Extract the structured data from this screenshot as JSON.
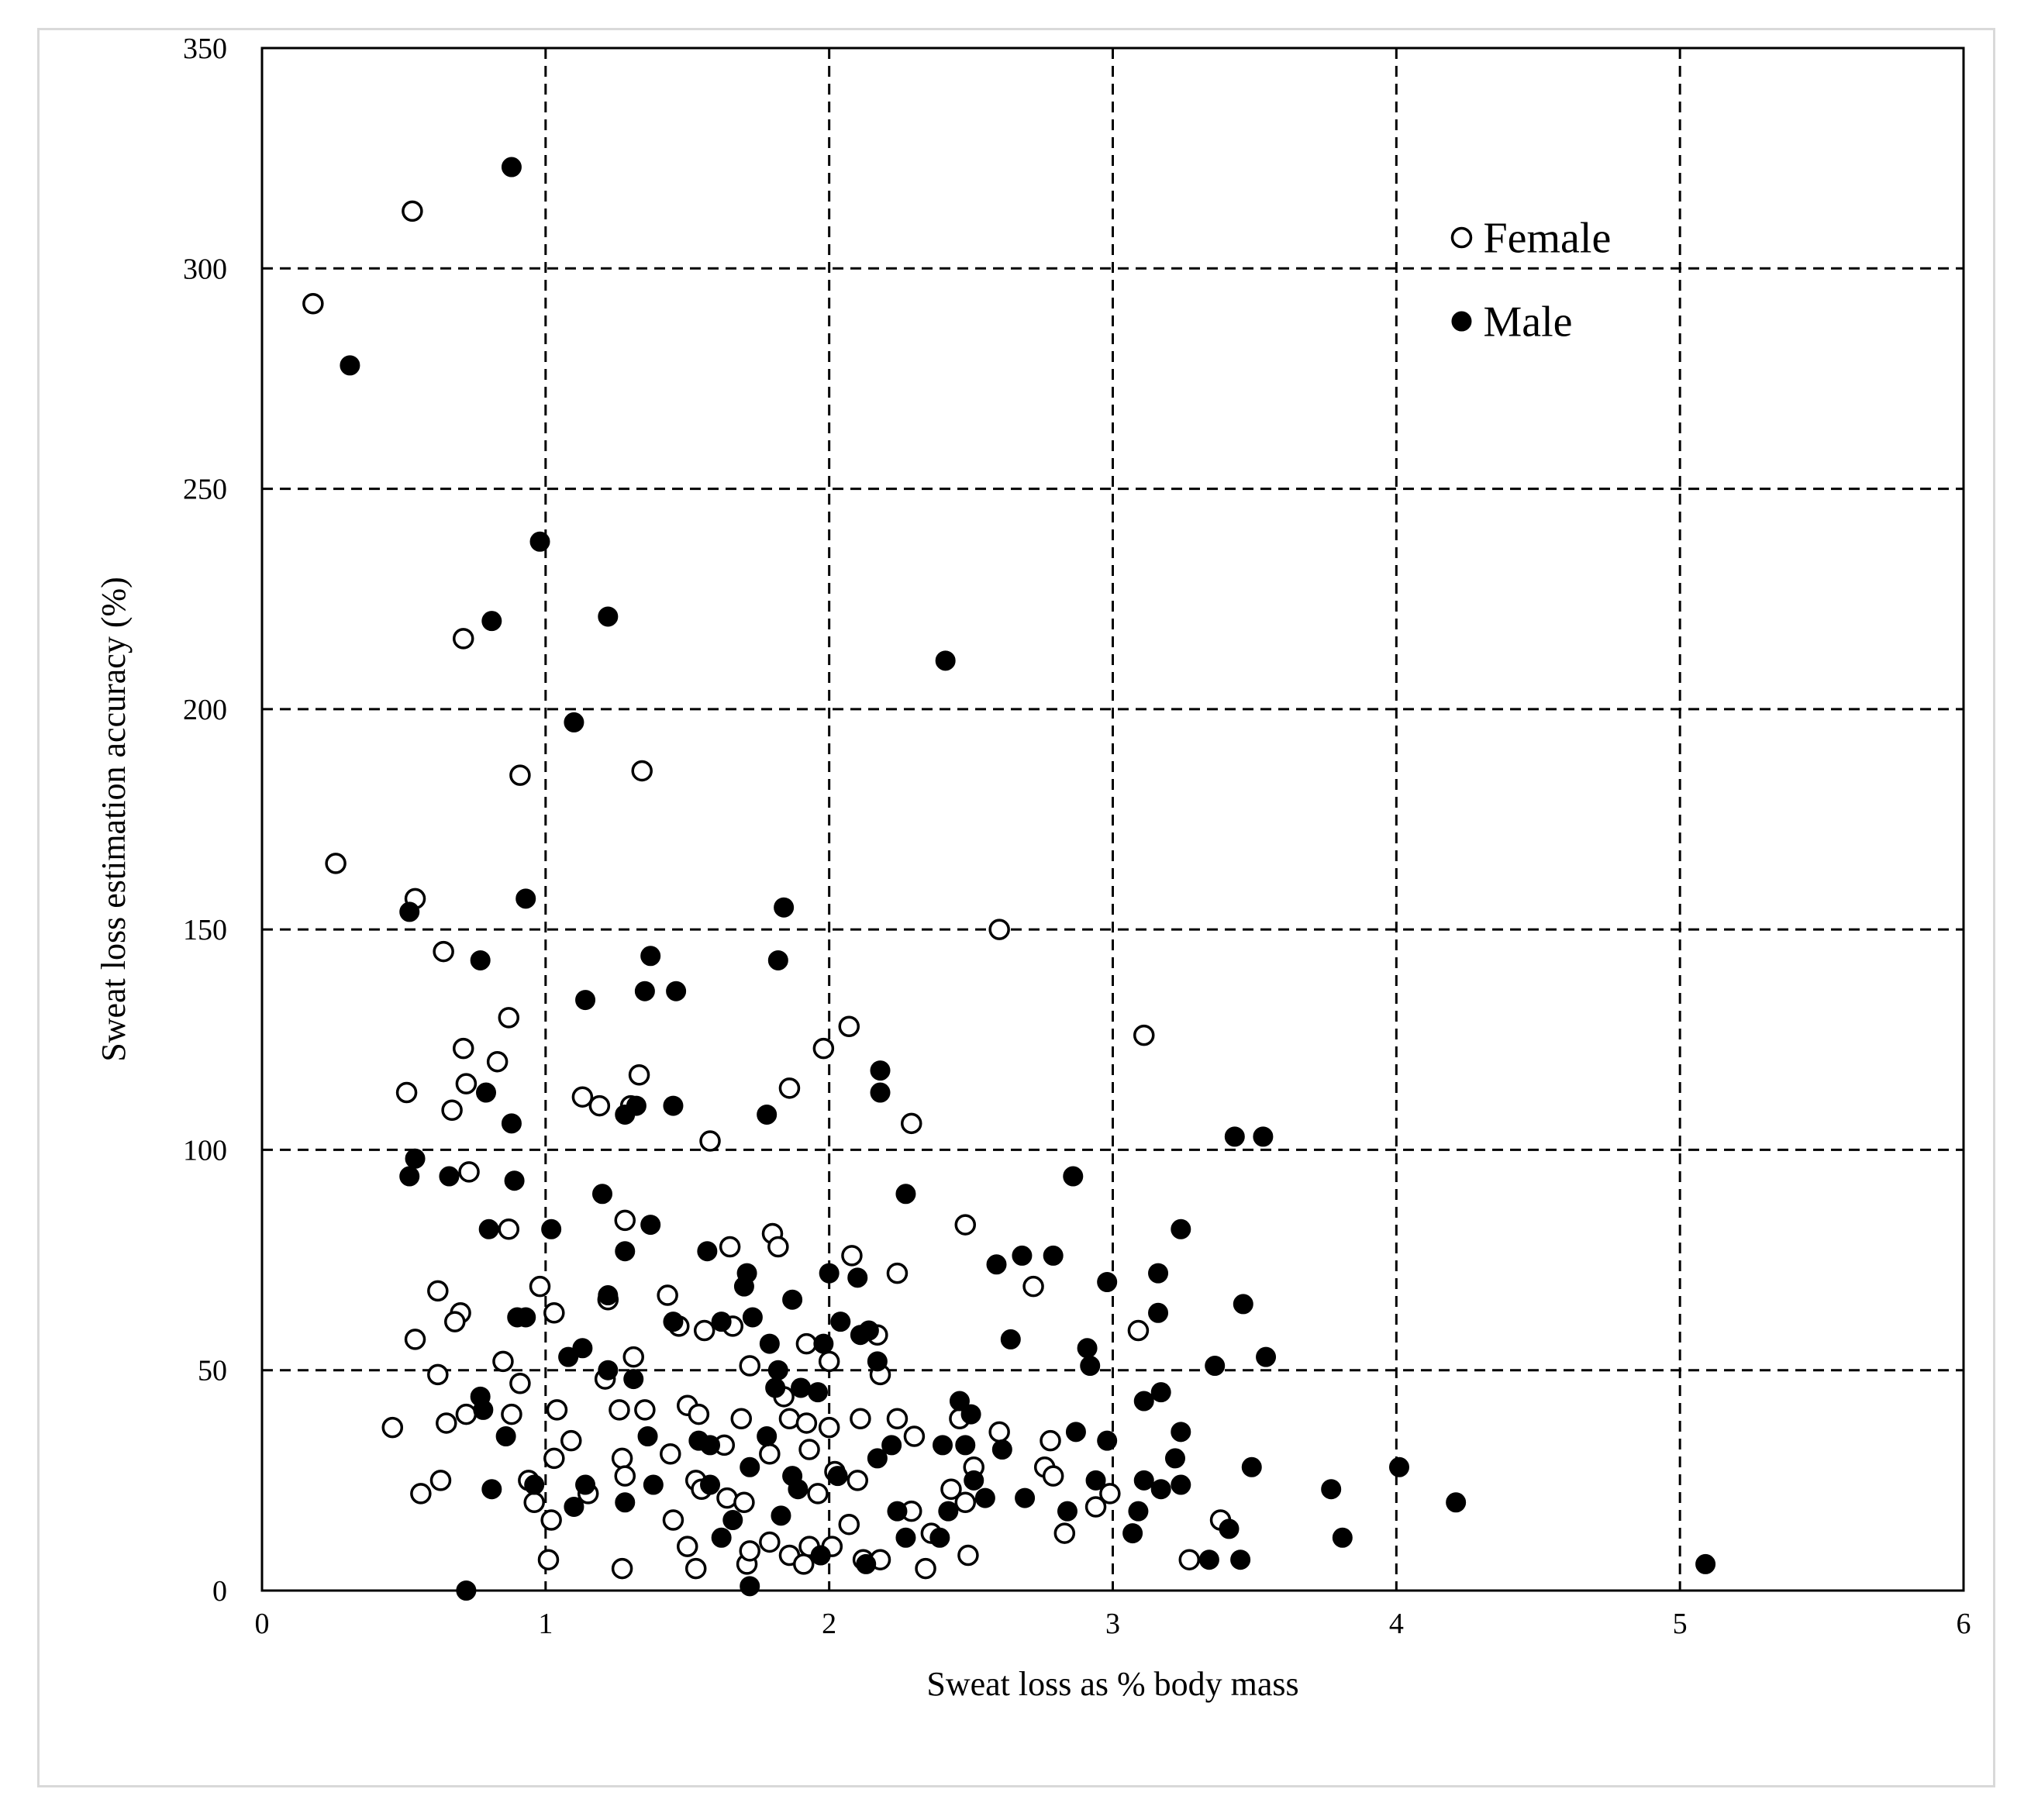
{
  "chart_data": {
    "type": "scatter",
    "xlabel": "Sweat loss as % body mass",
    "ylabel": "Sweat loss estimation accuracy (%)",
    "xlim": [
      0,
      6
    ],
    "ylim": [
      0,
      350
    ],
    "xticks": [
      0,
      1,
      2,
      3,
      4,
      5,
      6
    ],
    "yticks": [
      0,
      50,
      100,
      150,
      200,
      250,
      300,
      350
    ],
    "grid": "dashed",
    "legend_position": "top-right",
    "series": [
      {
        "name": "Female",
        "marker": "open-circle",
        "points": [
          [
            0.18,
            292
          ],
          [
            0.53,
            313
          ],
          [
            0.26,
            165
          ],
          [
            0.54,
            157
          ],
          [
            0.64,
            145
          ],
          [
            0.71,
            216
          ],
          [
            0.91,
            185
          ],
          [
            1.34,
            186
          ],
          [
            2.6,
            150
          ],
          [
            0.51,
            113
          ],
          [
            0.71,
            123
          ],
          [
            0.72,
            115
          ],
          [
            0.67,
            109
          ],
          [
            0.83,
            120
          ],
          [
            0.87,
            130
          ],
          [
            1.13,
            112
          ],
          [
            1.19,
            110
          ],
          [
            1.33,
            117
          ],
          [
            1.3,
            110
          ],
          [
            1.58,
            102
          ],
          [
            1.86,
            114
          ],
          [
            1.98,
            123
          ],
          [
            2.07,
            128
          ],
          [
            2.29,
            106
          ],
          [
            3.11,
            126
          ],
          [
            0.73,
            95
          ],
          [
            0.87,
            82
          ],
          [
            1.28,
            84
          ],
          [
            1.8,
            81
          ],
          [
            1.82,
            78
          ],
          [
            1.65,
            78
          ],
          [
            2.08,
            76
          ],
          [
            2.24,
            72
          ],
          [
            2.48,
            83
          ],
          [
            2.72,
            69
          ],
          [
            3.09,
            59
          ],
          [
            0.62,
            68
          ],
          [
            0.7,
            63
          ],
          [
            0.68,
            61
          ],
          [
            0.54,
            57
          ],
          [
            0.62,
            49
          ],
          [
            0.85,
            52
          ],
          [
            0.91,
            47
          ],
          [
            0.98,
            69
          ],
          [
            1.03,
            63
          ],
          [
            1.21,
            48
          ],
          [
            1.22,
            66
          ],
          [
            1.31,
            53
          ],
          [
            1.43,
            67
          ],
          [
            1.47,
            60
          ],
          [
            1.56,
            59
          ],
          [
            1.66,
            60
          ],
          [
            1.72,
            51
          ],
          [
            1.92,
            56
          ],
          [
            2.0,
            52
          ],
          [
            2.17,
            58
          ],
          [
            2.18,
            49
          ],
          [
            0.46,
            37
          ],
          [
            0.65,
            38
          ],
          [
            0.72,
            40
          ],
          [
            0.88,
            40
          ],
          [
            1.04,
            41
          ],
          [
            1.26,
            41
          ],
          [
            1.35,
            41
          ],
          [
            1.5,
            42
          ],
          [
            1.54,
            40
          ],
          [
            1.69,
            39
          ],
          [
            1.84,
            44
          ],
          [
            1.86,
            39
          ],
          [
            1.92,
            38
          ],
          [
            2.0,
            37
          ],
          [
            2.11,
            39
          ],
          [
            2.24,
            39
          ],
          [
            2.46,
            39
          ],
          [
            0.63,
            25
          ],
          [
            0.56,
            22
          ],
          [
            0.94,
            25
          ],
          [
            0.96,
            20
          ],
          [
            1.03,
            30
          ],
          [
            1.09,
            34
          ],
          [
            1.15,
            22
          ],
          [
            1.27,
            30
          ],
          [
            1.28,
            26
          ],
          [
            1.44,
            31
          ],
          [
            1.53,
            25
          ],
          [
            1.55,
            23
          ],
          [
            1.63,
            33
          ],
          [
            1.64,
            21
          ],
          [
            1.7,
            20
          ],
          [
            1.79,
            31
          ],
          [
            1.93,
            32
          ],
          [
            1.96,
            22
          ],
          [
            2.02,
            27
          ],
          [
            2.1,
            25
          ],
          [
            2.3,
            35
          ],
          [
            2.43,
            23
          ],
          [
            2.51,
            28
          ],
          [
            2.6,
            36
          ],
          [
            2.76,
            28
          ],
          [
            2.78,
            34
          ],
          [
            2.79,
            26
          ],
          [
            2.83,
            13
          ],
          [
            2.94,
            19
          ],
          [
            2.99,
            22
          ],
          [
            1.02,
            16
          ],
          [
            1.01,
            7
          ],
          [
            1.27,
            5
          ],
          [
            1.45,
            16
          ],
          [
            1.5,
            10
          ],
          [
            1.53,
            5
          ],
          [
            1.71,
            6
          ],
          [
            1.72,
            9
          ],
          [
            1.79,
            11
          ],
          [
            1.86,
            8
          ],
          [
            1.91,
            6
          ],
          [
            1.93,
            10
          ],
          [
            2.01,
            10
          ],
          [
            2.07,
            15
          ],
          [
            2.12,
            7
          ],
          [
            2.18,
            7
          ],
          [
            2.29,
            18
          ],
          [
            2.34,
            5
          ],
          [
            2.36,
            13
          ],
          [
            2.48,
            20
          ],
          [
            2.49,
            8
          ],
          [
            3.27,
            7
          ],
          [
            3.38,
            16
          ]
        ]
      },
      {
        "name": "Male",
        "marker": "filled-circle",
        "points": [
          [
            0.88,
            323
          ],
          [
            0.31,
            278
          ],
          [
            0.98,
            238
          ],
          [
            0.81,
            220
          ],
          [
            1.22,
            221
          ],
          [
            2.41,
            211
          ],
          [
            1.1,
            197
          ],
          [
            0.52,
            154
          ],
          [
            0.93,
            157
          ],
          [
            0.77,
            143
          ],
          [
            1.84,
            155
          ],
          [
            1.82,
            143
          ],
          [
            1.14,
            134
          ],
          [
            1.37,
            144
          ],
          [
            1.35,
            136
          ],
          [
            1.46,
            136
          ],
          [
            0.79,
            113
          ],
          [
            0.88,
            106
          ],
          [
            1.32,
            110
          ],
          [
            1.28,
            108
          ],
          [
            1.45,
            110
          ],
          [
            1.78,
            108
          ],
          [
            2.18,
            118
          ],
          [
            2.18,
            113
          ],
          [
            3.43,
            103
          ],
          [
            3.53,
            103
          ],
          [
            0.52,
            94
          ],
          [
            0.54,
            98
          ],
          [
            0.66,
            94
          ],
          [
            0.89,
            93
          ],
          [
            1.2,
            90
          ],
          [
            2.27,
            90
          ],
          [
            2.86,
            94
          ],
          [
            0.8,
            82
          ],
          [
            1.02,
            82
          ],
          [
            1.28,
            77
          ],
          [
            1.37,
            83
          ],
          [
            1.57,
            77
          ],
          [
            1.71,
            72
          ],
          [
            2.0,
            72
          ],
          [
            2.1,
            71
          ],
          [
            2.59,
            74
          ],
          [
            2.68,
            76
          ],
          [
            2.79,
            76
          ],
          [
            2.98,
            70
          ],
          [
            3.16,
            72
          ],
          [
            3.24,
            82
          ],
          [
            0.9,
            62
          ],
          [
            0.93,
            62
          ],
          [
            1.08,
            53
          ],
          [
            1.13,
            55
          ],
          [
            1.22,
            50
          ],
          [
            1.22,
            67
          ],
          [
            1.31,
            48
          ],
          [
            1.45,
            61
          ],
          [
            1.62,
            61
          ],
          [
            1.7,
            69
          ],
          [
            1.73,
            62
          ],
          [
            1.79,
            56
          ],
          [
            1.82,
            50
          ],
          [
            1.87,
            66
          ],
          [
            1.98,
            56
          ],
          [
            2.04,
            61
          ],
          [
            2.11,
            58
          ],
          [
            2.14,
            59
          ],
          [
            2.17,
            52
          ],
          [
            2.64,
            57
          ],
          [
            2.92,
            51
          ],
          [
            3.16,
            63
          ],
          [
            3.36,
            51
          ],
          [
            3.46,
            65
          ],
          [
            3.54,
            53
          ],
          [
            0.77,
            44
          ],
          [
            0.78,
            41
          ],
          [
            0.86,
            35
          ],
          [
            1.36,
            35
          ],
          [
            1.54,
            34
          ],
          [
            1.58,
            33
          ],
          [
            1.78,
            35
          ],
          [
            1.81,
            46
          ],
          [
            1.9,
            46
          ],
          [
            1.96,
            45
          ],
          [
            2.46,
            43
          ],
          [
            2.48,
            33
          ],
          [
            2.5,
            40
          ],
          [
            2.61,
            32
          ],
          [
            2.87,
            36
          ],
          [
            2.91,
            55
          ],
          [
            2.98,
            34
          ],
          [
            3.11,
            43
          ],
          [
            3.17,
            45
          ],
          [
            3.24,
            36
          ],
          [
            0.81,
            23
          ],
          [
            0.96,
            24
          ],
          [
            1.1,
            19
          ],
          [
            1.14,
            24
          ],
          [
            1.28,
            20
          ],
          [
            1.38,
            24
          ],
          [
            1.58,
            24
          ],
          [
            1.66,
            16
          ],
          [
            1.72,
            28
          ],
          [
            1.83,
            17
          ],
          [
            1.87,
            26
          ],
          [
            1.89,
            23
          ],
          [
            2.03,
            26
          ],
          [
            2.17,
            30
          ],
          [
            2.22,
            33
          ],
          [
            2.24,
            18
          ],
          [
            2.4,
            33
          ],
          [
            2.42,
            18
          ],
          [
            2.51,
            25
          ],
          [
            2.55,
            21
          ],
          [
            2.69,
            21
          ],
          [
            2.84,
            18
          ],
          [
            2.94,
            25
          ],
          [
            3.11,
            25
          ],
          [
            3.17,
            23
          ],
          [
            3.22,
            30
          ],
          [
            3.24,
            24
          ],
          [
            3.49,
            28
          ],
          [
            3.77,
            23
          ],
          [
            4.01,
            28
          ],
          [
            4.21,
            20
          ],
          [
            0.72,
            0
          ],
          [
            1.62,
            12
          ],
          [
            1.72,
            1
          ],
          [
            1.97,
            8
          ],
          [
            2.13,
            6
          ],
          [
            2.27,
            12
          ],
          [
            2.39,
            12
          ],
          [
            3.07,
            13
          ],
          [
            3.09,
            18
          ],
          [
            3.34,
            7
          ],
          [
            3.41,
            14
          ],
          [
            3.45,
            7
          ],
          [
            3.81,
            12
          ],
          [
            5.09,
            6
          ]
        ]
      }
    ]
  }
}
